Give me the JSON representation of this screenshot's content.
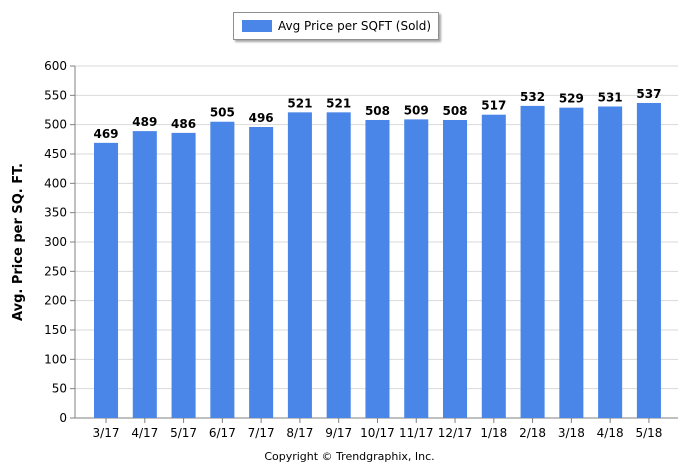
{
  "legend": {
    "label": "Avg Price per SQFT (Sold)"
  },
  "copyright": "Copyright © Trendgraphix, Inc.",
  "colors": {
    "bar": "#4a86e8",
    "grid": "#d9d9d9",
    "axis": "#808080"
  },
  "chart_data": {
    "type": "bar",
    "categories": [
      "3/17",
      "4/17",
      "5/17",
      "6/17",
      "7/17",
      "8/17",
      "9/17",
      "10/17",
      "11/17",
      "12/17",
      "1/18",
      "2/18",
      "3/18",
      "4/18",
      "5/18"
    ],
    "series": [
      {
        "name": "Avg Price per SQFT (Sold)",
        "values": [
          469,
          489,
          486,
          505,
          496,
          521,
          521,
          508,
          509,
          508,
          517,
          532,
          529,
          531,
          537
        ]
      }
    ],
    "title": "",
    "xlabel": "",
    "ylabel": "Avg. Price per SQ. FT.",
    "ylim": [
      0,
      600
    ],
    "yticks": [
      0,
      50,
      100,
      150,
      200,
      250,
      300,
      350,
      400,
      450,
      500,
      550,
      600
    ],
    "grid": true,
    "legend_position": "top-center",
    "data_labels": true
  }
}
